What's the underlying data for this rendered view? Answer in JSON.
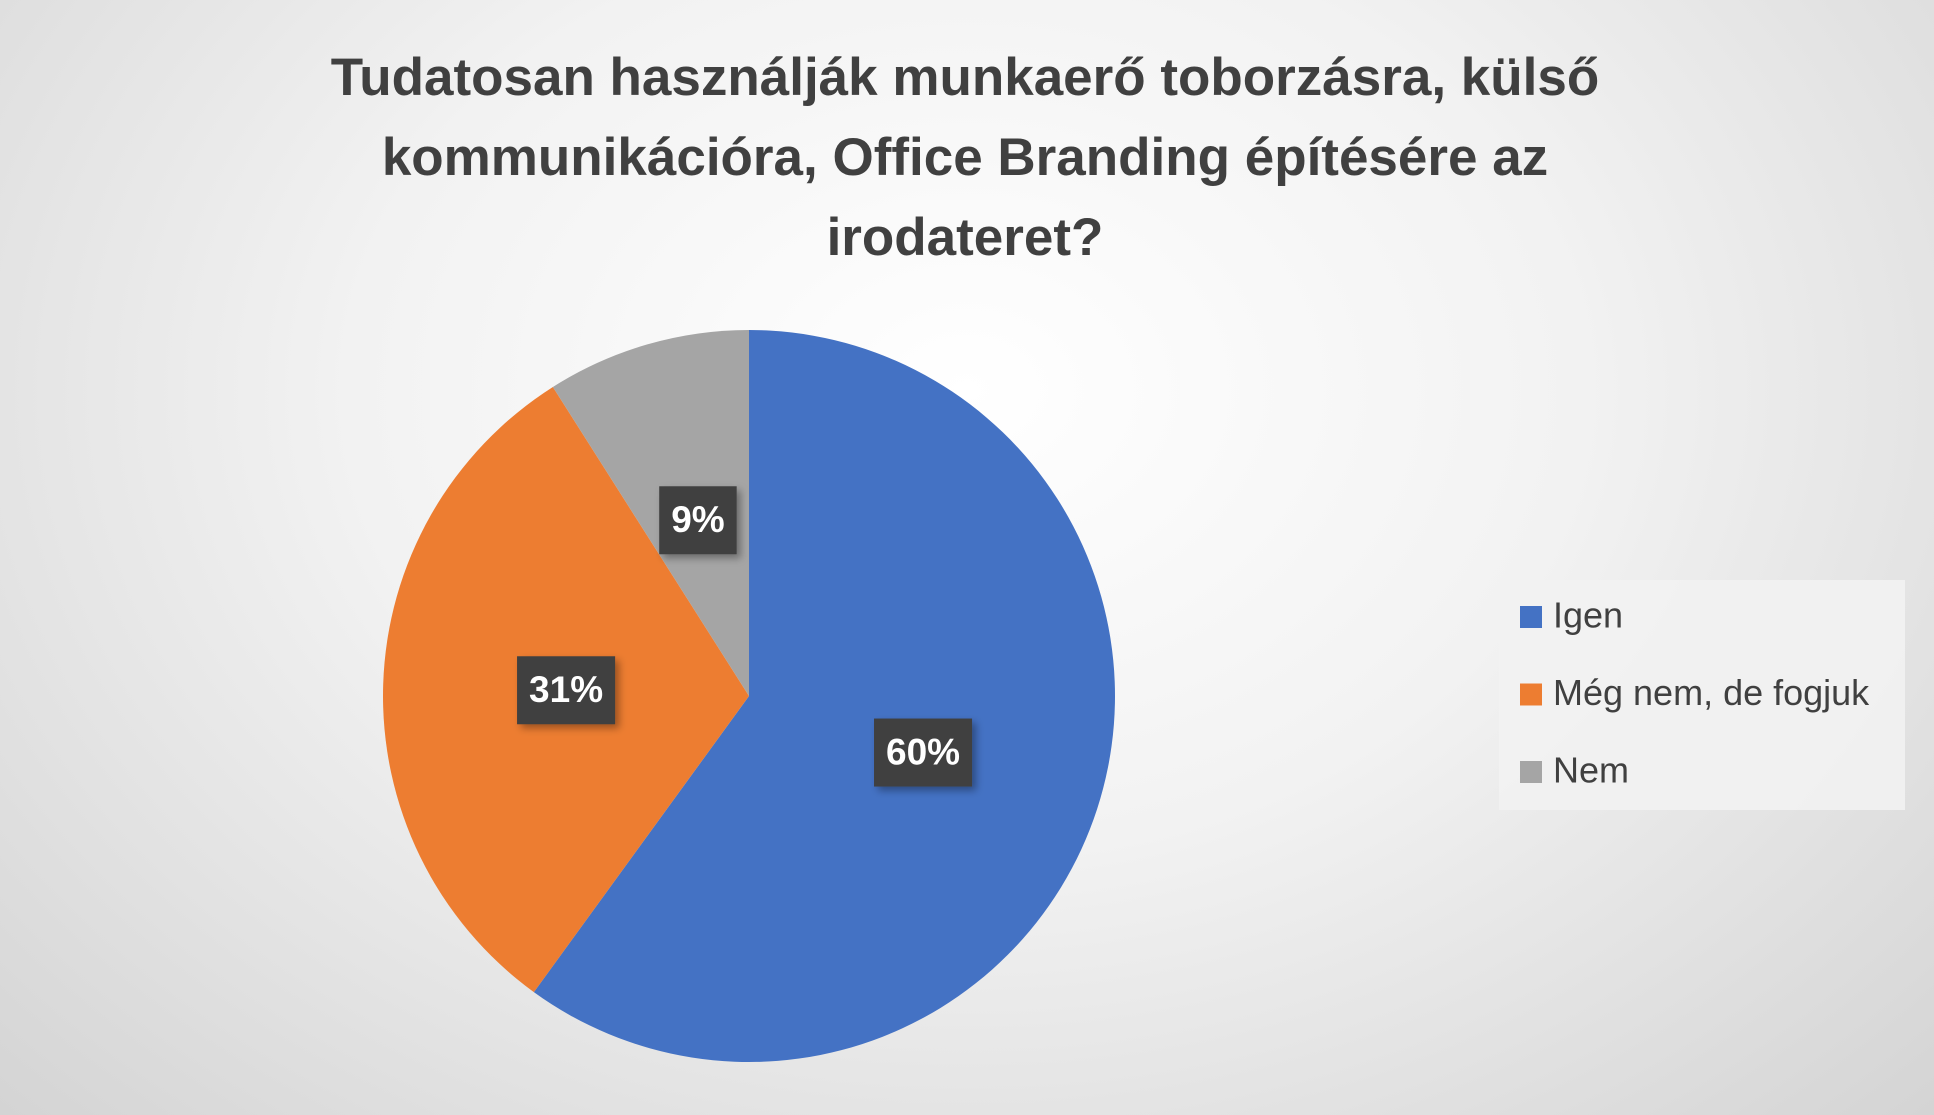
{
  "chart_data": {
    "type": "pie",
    "title": "Tudatosan használják munkaerő toborzásra, külső kommunikációra, Office Branding építésére az irodateret?",
    "categories": [
      "Igen",
      "Még nem, de fogjuk",
      "Nem"
    ],
    "values": [
      60,
      31,
      9
    ],
    "value_labels": [
      "60%",
      "31%",
      "9%"
    ],
    "colors": [
      "#4472c4",
      "#ed7d31",
      "#a5a5a5"
    ],
    "legend": "right"
  }
}
